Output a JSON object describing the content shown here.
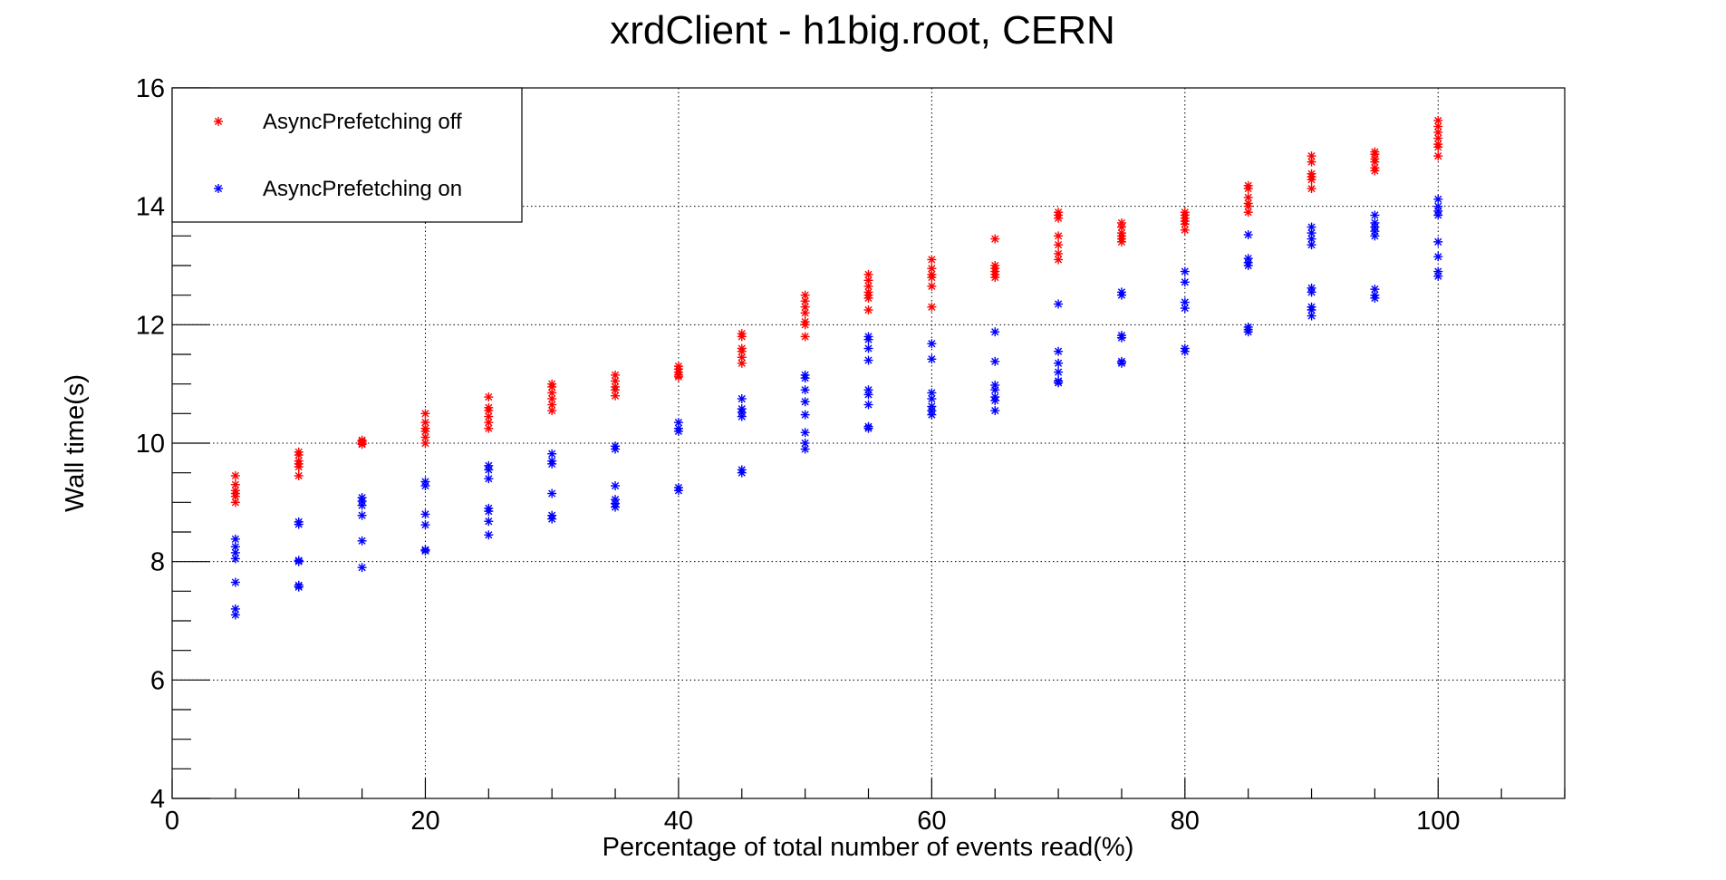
{
  "chart_data": {
    "type": "scatter",
    "title": "xrdClient - h1big.root, CERN",
    "xlabel": "Percentage of total number of events read(%)",
    "ylabel": "Wall time(s)",
    "xlim": [
      0,
      110
    ],
    "ylim": [
      4,
      16
    ],
    "x_ticks": [
      0,
      20,
      40,
      60,
      80,
      100
    ],
    "y_ticks": [
      4,
      6,
      8,
      10,
      12,
      14,
      16
    ],
    "grid": true,
    "legend_position": "top-left",
    "marker": "asterisk",
    "series": [
      {
        "name": "AsyncPrefetching off",
        "color": "#ff0000",
        "points": [
          [
            5,
            9.0
          ],
          [
            5,
            9.1
          ],
          [
            5,
            9.15
          ],
          [
            5,
            9.2
          ],
          [
            5,
            9.3
          ],
          [
            5,
            9.45
          ],
          [
            10,
            9.45
          ],
          [
            10,
            9.6
          ],
          [
            10,
            9.65
          ],
          [
            10,
            9.7
          ],
          [
            10,
            9.8
          ],
          [
            10,
            9.85
          ],
          [
            15,
            9.98
          ],
          [
            15,
            10.0
          ],
          [
            15,
            10.03
          ],
          [
            15,
            10.05
          ],
          [
            20,
            10.0
          ],
          [
            20,
            10.1
          ],
          [
            20,
            10.2
          ],
          [
            20,
            10.25
          ],
          [
            20,
            10.35
          ],
          [
            20,
            10.5
          ],
          [
            25,
            10.25
          ],
          [
            25,
            10.35
          ],
          [
            25,
            10.45
          ],
          [
            25,
            10.55
          ],
          [
            25,
            10.6
          ],
          [
            25,
            10.78
          ],
          [
            30,
            10.55
          ],
          [
            30,
            10.65
          ],
          [
            30,
            10.75
          ],
          [
            30,
            10.85
          ],
          [
            30,
            10.95
          ],
          [
            30,
            11.0
          ],
          [
            35,
            10.8
          ],
          [
            35,
            10.9
          ],
          [
            35,
            10.95
          ],
          [
            35,
            11.05
          ],
          [
            35,
            11.15
          ],
          [
            40,
            11.12
          ],
          [
            40,
            11.15
          ],
          [
            40,
            11.2
          ],
          [
            40,
            11.25
          ],
          [
            40,
            11.3
          ],
          [
            45,
            11.35
          ],
          [
            45,
            11.45
          ],
          [
            45,
            11.55
          ],
          [
            45,
            11.6
          ],
          [
            45,
            11.8
          ],
          [
            45,
            11.85
          ],
          [
            50,
            11.8
          ],
          [
            50,
            12.0
          ],
          [
            50,
            12.05
          ],
          [
            50,
            12.2
          ],
          [
            50,
            12.3
          ],
          [
            50,
            12.4
          ],
          [
            50,
            12.5
          ],
          [
            55,
            12.25
          ],
          [
            55,
            12.45
          ],
          [
            55,
            12.5
          ],
          [
            55,
            12.55
          ],
          [
            55,
            12.65
          ],
          [
            55,
            12.75
          ],
          [
            55,
            12.85
          ],
          [
            60,
            12.3
          ],
          [
            60,
            12.65
          ],
          [
            60,
            12.8
          ],
          [
            60,
            12.85
          ],
          [
            60,
            12.95
          ],
          [
            60,
            13.1
          ],
          [
            65,
            12.8
          ],
          [
            65,
            12.85
          ],
          [
            65,
            12.9
          ],
          [
            65,
            12.95
          ],
          [
            65,
            13.0
          ],
          [
            65,
            13.45
          ],
          [
            70,
            13.1
          ],
          [
            70,
            13.2
          ],
          [
            70,
            13.35
          ],
          [
            70,
            13.5
          ],
          [
            70,
            13.8
          ],
          [
            70,
            13.85
          ],
          [
            70,
            13.9
          ],
          [
            75,
            13.4
          ],
          [
            75,
            13.45
          ],
          [
            75,
            13.5
          ],
          [
            75,
            13.55
          ],
          [
            75,
            13.65
          ],
          [
            75,
            13.72
          ],
          [
            80,
            13.6
          ],
          [
            80,
            13.7
          ],
          [
            80,
            13.75
          ],
          [
            80,
            13.8
          ],
          [
            80,
            13.85
          ],
          [
            80,
            13.9
          ],
          [
            85,
            13.9
          ],
          [
            85,
            14.0
          ],
          [
            85,
            14.05
          ],
          [
            85,
            14.15
          ],
          [
            85,
            14.3
          ],
          [
            85,
            14.35
          ],
          [
            90,
            14.3
          ],
          [
            90,
            14.45
          ],
          [
            90,
            14.5
          ],
          [
            90,
            14.55
          ],
          [
            90,
            14.75
          ],
          [
            90,
            14.85
          ],
          [
            95,
            14.6
          ],
          [
            95,
            14.65
          ],
          [
            95,
            14.75
          ],
          [
            95,
            14.8
          ],
          [
            95,
            14.88
          ],
          [
            95,
            14.92
          ],
          [
            100,
            14.85
          ],
          [
            100,
            15.0
          ],
          [
            100,
            15.05
          ],
          [
            100,
            15.15
          ],
          [
            100,
            15.25
          ],
          [
            100,
            15.35
          ],
          [
            100,
            15.45
          ]
        ]
      },
      {
        "name": "AsyncPrefetching on",
        "color": "#0000ff",
        "points": [
          [
            5,
            7.1
          ],
          [
            5,
            7.2
          ],
          [
            5,
            7.65
          ],
          [
            5,
            8.05
          ],
          [
            5,
            8.15
          ],
          [
            5,
            8.25
          ],
          [
            5,
            8.38
          ],
          [
            10,
            7.57
          ],
          [
            10,
            7.6
          ],
          [
            10,
            8.0
          ],
          [
            10,
            8.02
          ],
          [
            10,
            8.63
          ],
          [
            10,
            8.67
          ],
          [
            15,
            7.9
          ],
          [
            15,
            8.35
          ],
          [
            15,
            8.78
          ],
          [
            15,
            8.95
          ],
          [
            15,
            9.02
          ],
          [
            15,
            9.08
          ],
          [
            20,
            8.18
          ],
          [
            20,
            8.2
          ],
          [
            20,
            8.62
          ],
          [
            20,
            8.8
          ],
          [
            20,
            9.28
          ],
          [
            20,
            9.35
          ],
          [
            25,
            8.45
          ],
          [
            25,
            8.68
          ],
          [
            25,
            8.85
          ],
          [
            25,
            8.9
          ],
          [
            25,
            9.4
          ],
          [
            25,
            9.55
          ],
          [
            25,
            9.62
          ],
          [
            30,
            8.72
          ],
          [
            30,
            8.78
          ],
          [
            30,
            9.15
          ],
          [
            30,
            9.65
          ],
          [
            30,
            9.7
          ],
          [
            30,
            9.82
          ],
          [
            35,
            8.92
          ],
          [
            35,
            8.98
          ],
          [
            35,
            9.05
          ],
          [
            35,
            9.28
          ],
          [
            35,
            9.9
          ],
          [
            35,
            9.95
          ],
          [
            40,
            9.2
          ],
          [
            40,
            9.25
          ],
          [
            40,
            10.2
          ],
          [
            40,
            10.25
          ],
          [
            40,
            10.35
          ],
          [
            45,
            9.5
          ],
          [
            45,
            9.55
          ],
          [
            45,
            10.45
          ],
          [
            45,
            10.52
          ],
          [
            45,
            10.58
          ],
          [
            45,
            10.75
          ],
          [
            50,
            9.9
          ],
          [
            50,
            10.0
          ],
          [
            50,
            10.18
          ],
          [
            50,
            10.48
          ],
          [
            50,
            10.7
          ],
          [
            50,
            10.9
          ],
          [
            50,
            11.1
          ],
          [
            50,
            11.15
          ],
          [
            55,
            10.25
          ],
          [
            55,
            10.28
          ],
          [
            55,
            10.65
          ],
          [
            55,
            10.82
          ],
          [
            55,
            10.9
          ],
          [
            55,
            11.4
          ],
          [
            55,
            11.6
          ],
          [
            55,
            11.75
          ],
          [
            55,
            11.8
          ],
          [
            60,
            10.48
          ],
          [
            60,
            10.55
          ],
          [
            60,
            10.62
          ],
          [
            60,
            10.75
          ],
          [
            60,
            10.85
          ],
          [
            60,
            11.42
          ],
          [
            60,
            11.68
          ],
          [
            65,
            10.55
          ],
          [
            65,
            10.72
          ],
          [
            65,
            10.78
          ],
          [
            65,
            10.9
          ],
          [
            65,
            10.98
          ],
          [
            65,
            11.38
          ],
          [
            65,
            11.88
          ],
          [
            70,
            11.02
          ],
          [
            70,
            11.05
          ],
          [
            70,
            11.2
          ],
          [
            70,
            11.35
          ],
          [
            70,
            11.55
          ],
          [
            70,
            12.35
          ],
          [
            75,
            11.35
          ],
          [
            75,
            11.38
          ],
          [
            75,
            11.78
          ],
          [
            75,
            11.82
          ],
          [
            75,
            12.5
          ],
          [
            75,
            12.55
          ],
          [
            80,
            11.55
          ],
          [
            80,
            11.6
          ],
          [
            80,
            12.28
          ],
          [
            80,
            12.38
          ],
          [
            80,
            12.72
          ],
          [
            80,
            12.9
          ],
          [
            85,
            11.88
          ],
          [
            85,
            11.92
          ],
          [
            85,
            11.96
          ],
          [
            85,
            13.0
          ],
          [
            85,
            13.05
          ],
          [
            85,
            13.12
          ],
          [
            85,
            13.52
          ],
          [
            90,
            12.15
          ],
          [
            90,
            12.25
          ],
          [
            90,
            12.3
          ],
          [
            90,
            12.55
          ],
          [
            90,
            12.62
          ],
          [
            90,
            13.35
          ],
          [
            90,
            13.45
          ],
          [
            90,
            13.55
          ],
          [
            90,
            13.65
          ],
          [
            95,
            12.45
          ],
          [
            95,
            12.5
          ],
          [
            95,
            12.6
          ],
          [
            95,
            13.5
          ],
          [
            95,
            13.58
          ],
          [
            95,
            13.65
          ],
          [
            95,
            13.72
          ],
          [
            95,
            13.85
          ],
          [
            100,
            12.82
          ],
          [
            100,
            12.9
          ],
          [
            100,
            13.15
          ],
          [
            100,
            13.4
          ],
          [
            100,
            13.85
          ],
          [
            100,
            13.92
          ],
          [
            100,
            14.0
          ],
          [
            100,
            14.12
          ]
        ]
      }
    ]
  }
}
